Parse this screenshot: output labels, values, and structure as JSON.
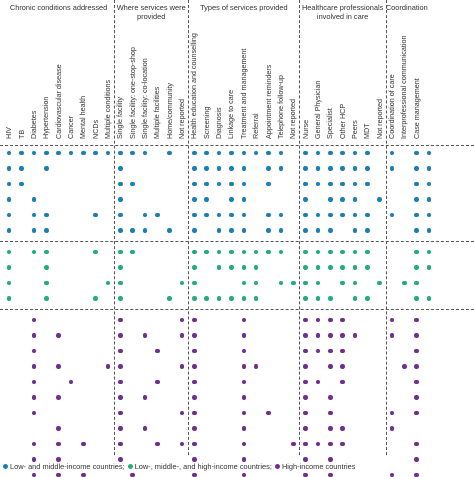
{
  "groups": [
    {
      "label": "Chronic conditions addressed",
      "columns": [
        "HIV",
        "TB",
        "Diabetes",
        "Hypertension",
        "Cardiovascular disease",
        "Cancer",
        "Mental health",
        "NCDs",
        "Multiple conditions"
      ]
    },
    {
      "label": "Where services were provided",
      "columns": [
        "Single facility",
        "Single facility: one-stop-shop",
        "Single facility: co-location",
        "Multiple facilities",
        "Home/community",
        "Not reported"
      ]
    },
    {
      "label": "Types of services provided",
      "columns": [
        "Health education and counselling",
        "Screening",
        "Diagnosis",
        "Linkage to care",
        "Treatment and management",
        "Referral",
        "Appointment reminders",
        "Telephone follow-up",
        "Not reported"
      ]
    },
    {
      "label": "Healthcare professionals involved in care",
      "columns": [
        "Nurse",
        "General Physician",
        "Specialist",
        "Other HCP",
        "Peers",
        "MDT",
        "Not reported"
      ]
    },
    {
      "label": "Coordination",
      "columns": [
        "Coordination of care",
        "Interprofessional communication",
        "Case management"
      ]
    }
  ],
  "series": [
    {
      "key": "lmic",
      "color": "#1a7fb5"
    },
    {
      "key": "mixed",
      "color": "#22ad7a"
    },
    {
      "key": "hic",
      "color": "#6f2f8f"
    }
  ],
  "rows": [
    {
      "series": "lmic",
      "cols": [
        0,
        1,
        2,
        3,
        4,
        5,
        6,
        7,
        8,
        9,
        10,
        11,
        13,
        15,
        16,
        17,
        18,
        19,
        20,
        21,
        22,
        24,
        25,
        26,
        27,
        28,
        29,
        31,
        33,
        34
      ]
    },
    {
      "series": "lmic",
      "cols": [
        0,
        1,
        3,
        9,
        15,
        16,
        17,
        18,
        19,
        21,
        22,
        24,
        25,
        26,
        27,
        28,
        29,
        31,
        33,
        34
      ]
    },
    {
      "series": "lmic",
      "cols": [
        0,
        1,
        9,
        10,
        15,
        16,
        17,
        18,
        19,
        21,
        24,
        25,
        26,
        27,
        28,
        29,
        33,
        34
      ]
    },
    {
      "series": "lmic",
      "cols": [
        0,
        2,
        9,
        15,
        16,
        18,
        19,
        24,
        26,
        27,
        28,
        30,
        33,
        34
      ]
    },
    {
      "series": "lmic",
      "cols": [
        0,
        2,
        3,
        7,
        9,
        11,
        12,
        15,
        16,
        17,
        18,
        19,
        21,
        22,
        24,
        25,
        26,
        27,
        28,
        29,
        31,
        33,
        34
      ]
    },
    {
      "series": "lmic",
      "cols": [
        0,
        2,
        3,
        9,
        10,
        11,
        13,
        15,
        17,
        18,
        19,
        21,
        22,
        24,
        25,
        26,
        28,
        29,
        33,
        34
      ]
    },
    {
      "series": "mixed",
      "cols": [
        0,
        2,
        3,
        7,
        9,
        10,
        15,
        16,
        17,
        18,
        19,
        20,
        21,
        22,
        24,
        25,
        26,
        27,
        28,
        29,
        33,
        34
      ]
    },
    {
      "series": "mixed",
      "cols": [
        0,
        3,
        9,
        15,
        17,
        18,
        19,
        20,
        24,
        25,
        26,
        27,
        28,
        29,
        33,
        34
      ]
    },
    {
      "series": "mixed",
      "cols": [
        0,
        3,
        8,
        9,
        14,
        15,
        19,
        20,
        22,
        23,
        24,
        25,
        27,
        28,
        30,
        32,
        33
      ]
    },
    {
      "series": "mixed",
      "cols": [
        0,
        3,
        7,
        9,
        13,
        15,
        16,
        17,
        18,
        19,
        20,
        24,
        25,
        26,
        28,
        29,
        33,
        34
      ]
    },
    {
      "series": "hic",
      "cols": [
        2,
        9,
        14,
        15,
        19,
        24,
        25,
        26,
        27,
        31,
        33
      ]
    },
    {
      "series": "hic",
      "cols": [
        2,
        4,
        9,
        11,
        14,
        15,
        19,
        24,
        25,
        26,
        27,
        28,
        31,
        33
      ]
    },
    {
      "series": "hic",
      "cols": [
        2,
        9,
        12,
        15,
        19,
        24,
        25,
        26,
        27,
        33
      ]
    },
    {
      "series": "hic",
      "cols": [
        2,
        4,
        8,
        9,
        14,
        15,
        19,
        20,
        24,
        26,
        27,
        32,
        33
      ]
    },
    {
      "series": "hic",
      "cols": [
        2,
        5,
        9,
        12,
        15,
        19,
        24,
        25,
        27,
        33
      ]
    },
    {
      "series": "hic",
      "cols": [
        2,
        4,
        9,
        11,
        15,
        19,
        24,
        26,
        33
      ]
    },
    {
      "series": "hic",
      "cols": [
        2,
        9,
        14,
        15,
        19,
        21,
        24,
        26,
        31,
        33
      ]
    },
    {
      "series": "hic",
      "cols": [
        4,
        9,
        11,
        15,
        19,
        24,
        26,
        27,
        31
      ]
    },
    {
      "series": "hic",
      "cols": [
        2,
        4,
        6,
        9,
        12,
        14,
        15,
        19,
        23,
        24,
        25,
        26,
        27,
        33
      ]
    },
    {
      "series": "hic",
      "cols": [
        2,
        4,
        9,
        15,
        19,
        24,
        26,
        33
      ]
    },
    {
      "series": "hic",
      "cols": [
        2,
        4,
        6,
        10,
        15,
        19,
        24,
        26,
        31,
        33
      ]
    }
  ],
  "legend": [
    {
      "series": "lmic",
      "label": "Low- and middle-income countries;"
    },
    {
      "series": "mixed",
      "label": "Low-, middle-, and high-income countries;"
    },
    {
      "series": "hic",
      "label": "High-income countries"
    }
  ]
}
